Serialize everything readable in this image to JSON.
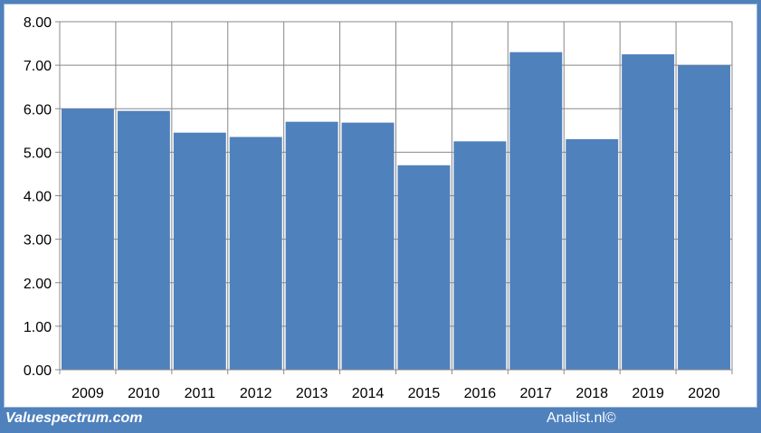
{
  "footer": {
    "left_text": "Valuespectrum.com",
    "right_text": "Analist.nl©"
  },
  "colors": {
    "bar": "#4f81bd",
    "frame": "#4f81bd",
    "grid": "#888888"
  },
  "chart_data": {
    "type": "bar",
    "categories": [
      "2009",
      "2010",
      "2011",
      "2012",
      "2013",
      "2014",
      "2015",
      "2016",
      "2017",
      "2018",
      "2019",
      "2020"
    ],
    "values": [
      6.0,
      5.95,
      5.45,
      5.35,
      5.7,
      5.68,
      4.7,
      5.25,
      7.3,
      5.3,
      7.25,
      7.0
    ],
    "y_ticks": [
      "0.00",
      "1.00",
      "2.00",
      "3.00",
      "4.00",
      "5.00",
      "6.00",
      "7.00",
      "8.00"
    ],
    "ylim": [
      0,
      8
    ],
    "grid": true,
    "legend": "none"
  }
}
